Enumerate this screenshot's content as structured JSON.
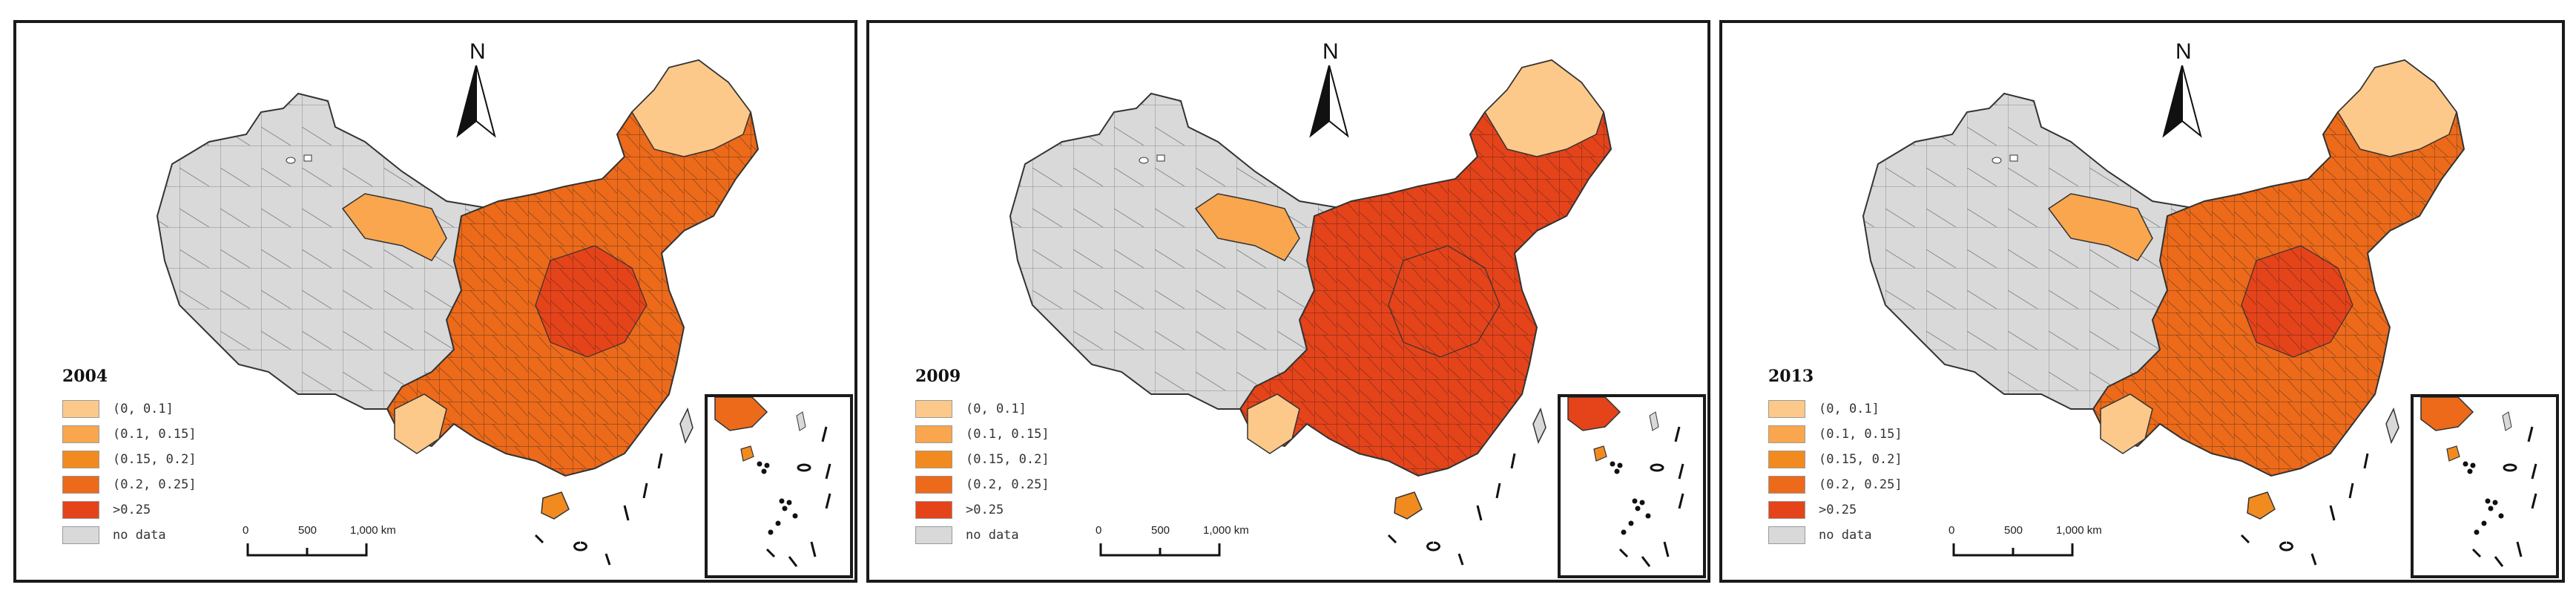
{
  "north_label": "N",
  "scale": {
    "ticks": [
      "0",
      "500",
      "1,000 km"
    ]
  },
  "legend": {
    "items": [
      {
        "label": "(0, 0.1]",
        "color": "#fcc98a"
      },
      {
        "label": "(0.1, 0.15]",
        "color": "#f9a64e"
      },
      {
        "label": "(0.15, 0.2]",
        "color": "#f28b1f"
      },
      {
        "label": "(0.2, 0.25]",
        "color": "#ec6a1a"
      },
      {
        "label": ">0.25",
        "color": "#e5431a"
      },
      {
        "label": "no data",
        "color": "#d9d9d9"
      }
    ]
  },
  "panels": [
    {
      "year": "2004"
    },
    {
      "year": "2009"
    },
    {
      "year": "2013"
    }
  ]
}
